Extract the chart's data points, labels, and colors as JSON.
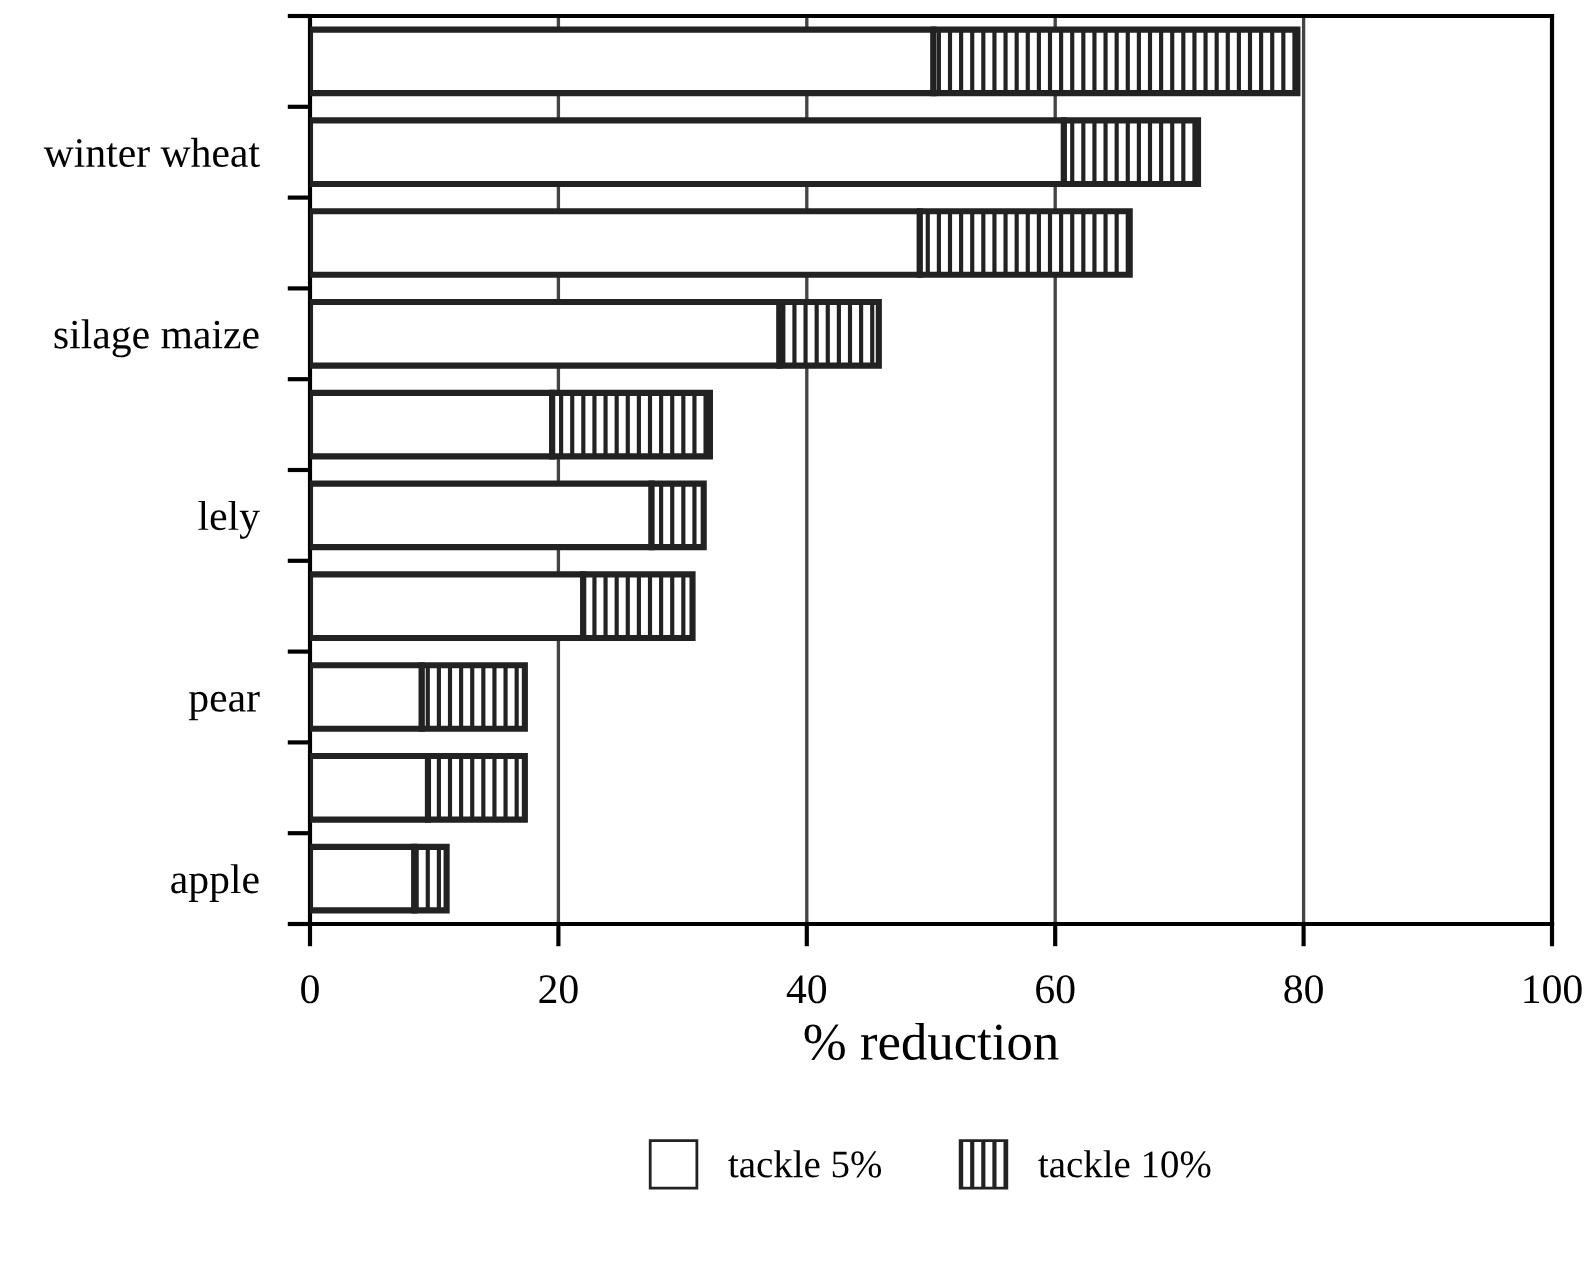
{
  "chart_data": {
    "type": "bar",
    "orientation": "horizontal",
    "stacked": true,
    "xlabel": "% reduction",
    "categories": [
      null,
      "winter wheat",
      null,
      "silage maize",
      null,
      "lely",
      null,
      "pear",
      null,
      "apple"
    ],
    "series": [
      {
        "name": "tackle 5%",
        "color": "#ffffff",
        "values": [
          50.2,
          60.7,
          49.1,
          37.8,
          19.5,
          27.5,
          22.0,
          9.0,
          9.5,
          8.4
        ]
      },
      {
        "name": "tackle 10%",
        "color": "#222222",
        "values": [
          29.3,
          10.8,
          16.9,
          8.0,
          12.7,
          4.2,
          8.8,
          8.3,
          7.8,
          2.6
        ]
      }
    ],
    "xlim": [
      0,
      100
    ],
    "xticks": [
      0,
      20,
      40,
      60,
      80,
      100
    ],
    "grid": "x",
    "legend": "bottom"
  }
}
